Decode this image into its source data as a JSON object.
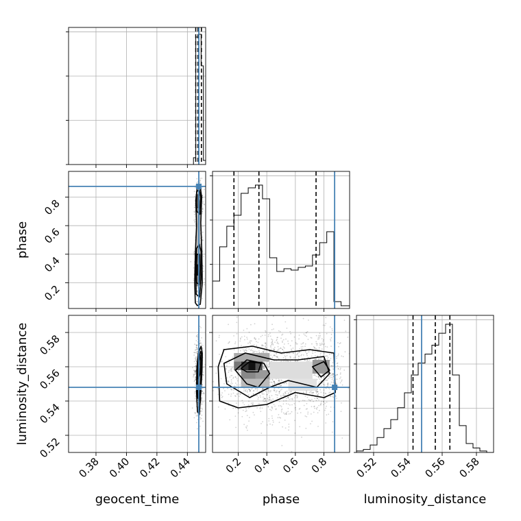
{
  "chart_data": {
    "type": "corner",
    "parameters": [
      "geocent_time",
      "phase",
      "luminosity_distance"
    ],
    "axis_labels": {
      "geocent_time": "geocent_time",
      "phase": "phase",
      "luminosity_distance": "luminosity_distance"
    },
    "ranges": {
      "geocent_time": [
        0.362,
        0.452
      ],
      "phase": [
        0.02,
        0.98
      ],
      "luminosity_distance": [
        0.51,
        0.59
      ]
    },
    "ticks": {
      "geocent_time": [
        {
          "value": 0.38,
          "label": "0.38"
        },
        {
          "value": 0.4,
          "label": "0.40"
        },
        {
          "value": 0.42,
          "label": "0.42"
        },
        {
          "value": 0.44,
          "label": "0.44"
        }
      ],
      "phase": [
        {
          "value": 0.2,
          "label": "0.2"
        },
        {
          "value": 0.4,
          "label": "0.4"
        },
        {
          "value": 0.6,
          "label": "0.6"
        },
        {
          "value": 0.8,
          "label": "0.8"
        }
      ],
      "luminosity_distance": [
        {
          "value": 0.52,
          "label": "0.52"
        },
        {
          "value": 0.54,
          "label": "0.54"
        },
        {
          "value": 0.56,
          "label": "0.56"
        },
        {
          "value": 0.58,
          "label": "0.58"
        }
      ]
    },
    "truths": {
      "geocent_time": 0.4475,
      "phase": 0.875,
      "luminosity_distance": 0.548
    },
    "truth_color": "#4682b4",
    "quantiles": {
      "geocent_time": [
        0.4455,
        0.447,
        0.4492
      ],
      "phase": [
        0.17,
        0.345,
        0.745
      ],
      "luminosity_distance": [
        0.543,
        0.556,
        0.5645
      ]
    },
    "marginals": {
      "geocent_time": {
        "bin_edges": [
          0.444,
          0.4455,
          0.4475,
          0.449,
          0.4505,
          0.452
        ],
        "counts": [
          0.05,
          0.93,
          0.95,
          0.72,
          0.03
        ],
        "ymax": 1.0
      },
      "phase": {
        "bin_edges": [
          0.02,
          0.07,
          0.12,
          0.17,
          0.22,
          0.27,
          0.32,
          0.37,
          0.42,
          0.47,
          0.52,
          0.57,
          0.62,
          0.67,
          0.72,
          0.77,
          0.82,
          0.87,
          0.92,
          0.98
        ],
        "counts": [
          0.2,
          0.45,
          0.6,
          0.68,
          0.84,
          0.88,
          0.9,
          0.8,
          0.37,
          0.27,
          0.29,
          0.28,
          0.3,
          0.31,
          0.39,
          0.48,
          0.56,
          0.05,
          0.02
        ],
        "ymax": 1.0
      },
      "luminosity_distance": {
        "bin_edges": [
          0.51,
          0.514,
          0.518,
          0.522,
          0.526,
          0.53,
          0.534,
          0.538,
          0.542,
          0.546,
          0.55,
          0.554,
          0.558,
          0.562,
          0.566,
          0.57,
          0.574,
          0.578,
          0.582,
          0.586,
          0.59
        ],
        "counts": [
          0.01,
          0.02,
          0.05,
          0.1,
          0.16,
          0.22,
          0.3,
          0.4,
          0.52,
          0.6,
          0.66,
          0.72,
          0.8,
          0.86,
          0.52,
          0.18,
          0.06,
          0.03,
          0.01,
          0.0
        ],
        "ymax": 0.92
      }
    },
    "joint_panels": [
      {
        "x": "geocent_time",
        "y": "phase",
        "position": "middle-left"
      },
      {
        "x": "geocent_time",
        "y": "luminosity_distance",
        "position": "bottom-left"
      },
      {
        "x": "phase",
        "y": "luminosity_distance",
        "position": "bottom-middle"
      }
    ],
    "grid": true
  }
}
